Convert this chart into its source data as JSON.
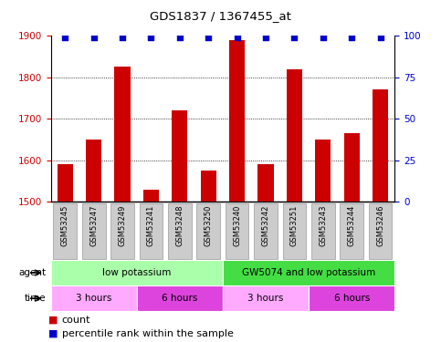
{
  "title": "GDS1837 / 1367455_at",
  "samples": [
    "GSM53245",
    "GSM53247",
    "GSM53249",
    "GSM53241",
    "GSM53248",
    "GSM53250",
    "GSM53240",
    "GSM53242",
    "GSM53251",
    "GSM53243",
    "GSM53244",
    "GSM53246"
  ],
  "bar_values": [
    1590,
    1650,
    1825,
    1530,
    1720,
    1575,
    1890,
    1590,
    1820,
    1650,
    1665,
    1770
  ],
  "bar_color": "#cc0000",
  "dot_color": "#0000cc",
  "ylim_left": [
    1500,
    1900
  ],
  "ylim_right": [
    0,
    100
  ],
  "yticks_left": [
    1500,
    1600,
    1700,
    1800,
    1900
  ],
  "yticks_right": [
    0,
    25,
    50,
    75,
    100
  ],
  "agent_groups": [
    {
      "label": "low potassium",
      "start": 0,
      "end": 6,
      "color": "#aaffaa"
    },
    {
      "label": "GW5074 and low potassium",
      "start": 6,
      "end": 12,
      "color": "#44dd44"
    }
  ],
  "time_groups": [
    {
      "label": "3 hours",
      "start": 0,
      "end": 3,
      "color": "#ffaaff"
    },
    {
      "label": "6 hours",
      "start": 3,
      "end": 6,
      "color": "#dd44dd"
    },
    {
      "label": "3 hours",
      "start": 6,
      "end": 9,
      "color": "#ffaaff"
    },
    {
      "label": "6 hours",
      "start": 9,
      "end": 12,
      "color": "#dd44dd"
    }
  ],
  "tick_color_left": "#cc0000",
  "tick_color_right": "#0000cc",
  "grid_color": "#555555",
  "sample_box_color": "#cccccc",
  "sample_box_edge": "#999999"
}
